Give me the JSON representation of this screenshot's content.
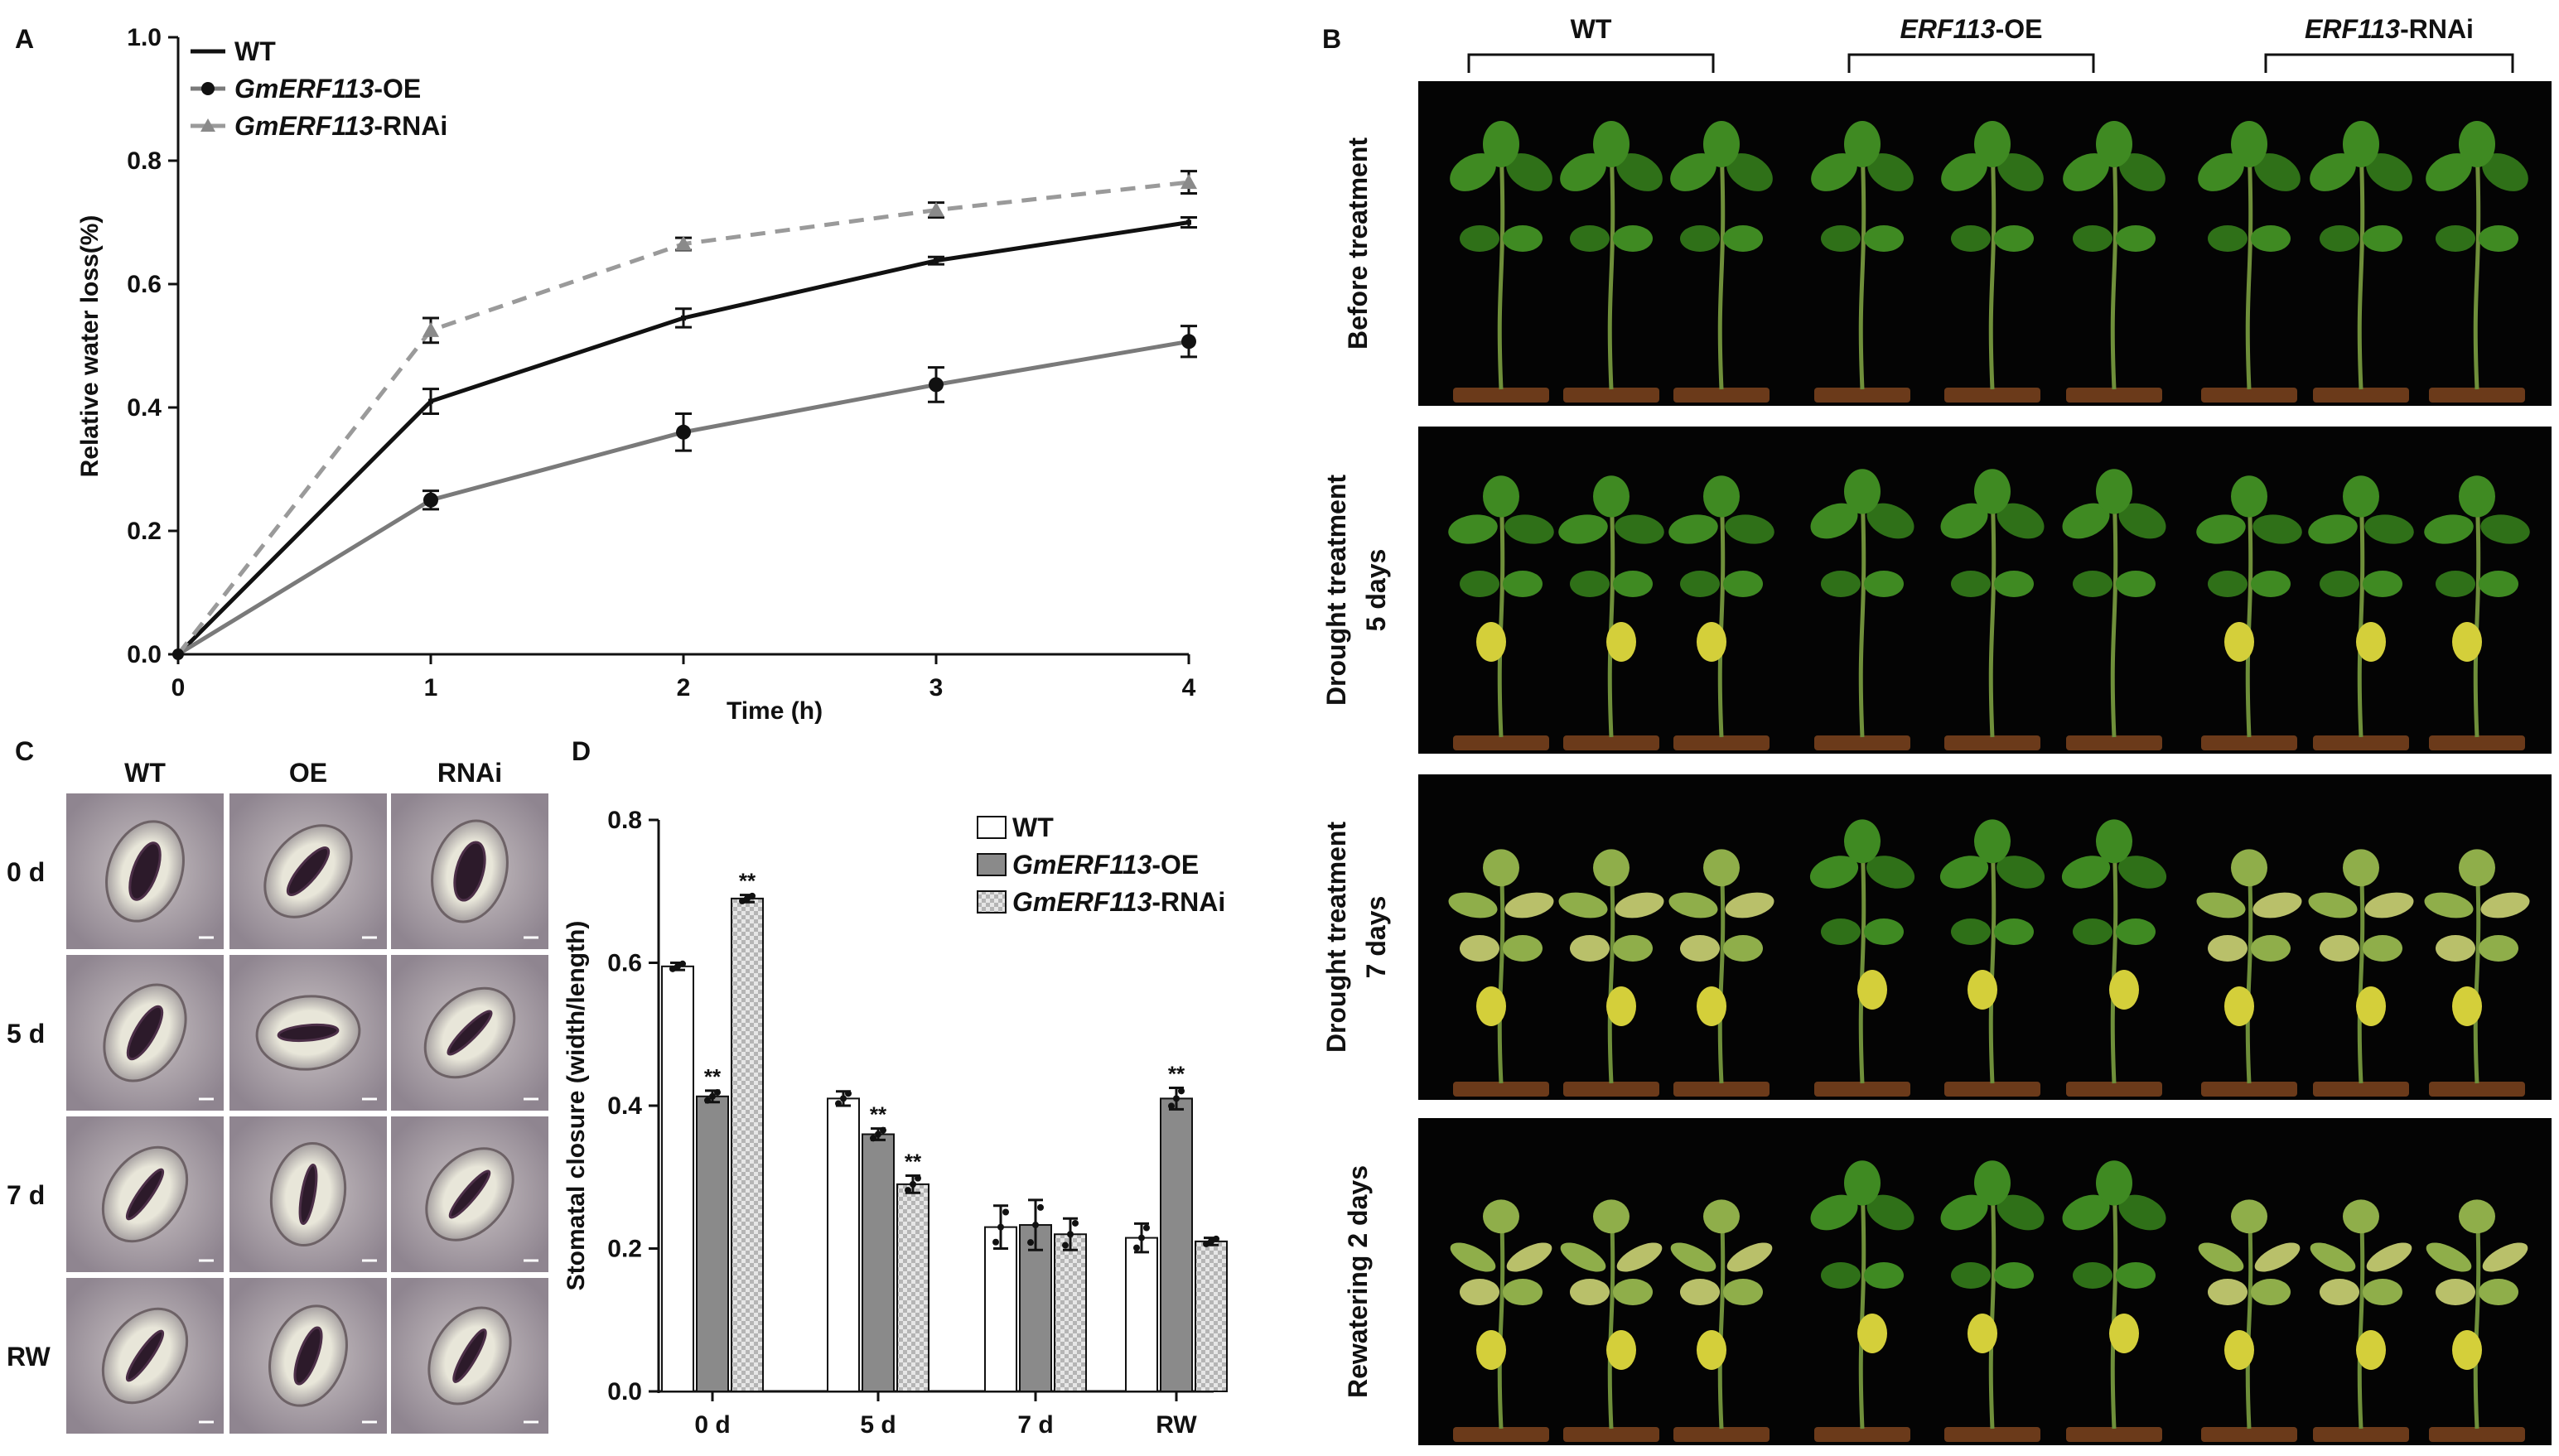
{
  "figure": {
    "panel_a": "A",
    "panel_b": "B",
    "panel_c": "C",
    "panel_d": "D"
  },
  "chart_data": [
    {
      "type": "line",
      "panel": "A",
      "title": "",
      "xlabel": "Time (h)",
      "ylabel": "Relative water loss(%)",
      "x": [
        0,
        1,
        2,
        3,
        4
      ],
      "xticks": [
        "0",
        "1",
        "2",
        "3",
        "4"
      ],
      "yticks": [
        "0.0",
        "0.2",
        "0.4",
        "0.6",
        "0.8",
        "1.0"
      ],
      "xlim": [
        0,
        4
      ],
      "ylim": [
        0,
        1.0
      ],
      "legend_position": "top-left",
      "series": [
        {
          "name": "WT",
          "italic_part": "",
          "suffix": "WT",
          "values": [
            0.0,
            0.41,
            0.545,
            0.638,
            0.7
          ],
          "errors": [
            0,
            0.02,
            0.015,
            0.006,
            0.008
          ],
          "color": "#111111",
          "style": "solid",
          "marker": "none"
        },
        {
          "name": "GmERF113-OE",
          "italic_part": "GmERF113",
          "suffix": "-OE",
          "values": [
            0.0,
            0.25,
            0.36,
            0.437,
            0.507
          ],
          "errors": [
            0,
            0.015,
            0.03,
            0.028,
            0.025
          ],
          "color": "#7a7a7a",
          "style": "solid",
          "marker": "circle"
        },
        {
          "name": "GmERF113-RNAi",
          "italic_part": "GmERF113",
          "suffix": "-RNAi",
          "values": [
            0.0,
            0.525,
            0.665,
            0.72,
            0.765
          ],
          "errors": [
            0,
            0.02,
            0.01,
            0.012,
            0.018
          ],
          "color": "#9a9a9a",
          "style": "dashed",
          "marker": "triangle"
        }
      ]
    },
    {
      "type": "bar",
      "panel": "D",
      "title": "",
      "xlabel": "",
      "ylabel": "Stomatal closure (width/length)",
      "categories": [
        "0 d",
        "5 d",
        "7 d",
        "RW"
      ],
      "yticks": [
        "0.0",
        "0.2",
        "0.4",
        "0.6",
        "0.8"
      ],
      "ylim": [
        0,
        0.8
      ],
      "legend_position": "top-right",
      "series": [
        {
          "name": "WT",
          "italic_part": "",
          "suffix": "WT",
          "values": [
            0.595,
            0.41,
            0.23,
            0.215
          ],
          "errors": [
            0.005,
            0.01,
            0.03,
            0.02
          ],
          "fill": "#ffffff",
          "pattern": "none",
          "significance": [
            "",
            "",
            "",
            ""
          ]
        },
        {
          "name": "GmERF113-OE",
          "italic_part": "GmERF113",
          "suffix": "-OE",
          "values": [
            0.413,
            0.36,
            0.233,
            0.41
          ],
          "errors": [
            0.008,
            0.008,
            0.035,
            0.015
          ],
          "fill": "#8a8a8a",
          "pattern": "none",
          "significance": [
            "**",
            "**",
            "",
            "**"
          ]
        },
        {
          "name": "GmERF113-RNAi",
          "italic_part": "GmERF113",
          "suffix": "-RNAi",
          "values": [
            0.69,
            0.29,
            0.22,
            0.21
          ],
          "errors": [
            0.005,
            0.012,
            0.022,
            0.005
          ],
          "fill": "#d9d9d9",
          "pattern": "checker",
          "significance": [
            "**",
            "**",
            "",
            ""
          ]
        }
      ]
    }
  ],
  "panel_b": {
    "groups": [
      {
        "italic_part": "",
        "suffix": "WT"
      },
      {
        "italic_part": "ERF113",
        "suffix": "-OE"
      },
      {
        "italic_part": "ERF113",
        "suffix": "-RNAi"
      }
    ],
    "rows": [
      {
        "line1": "Before treatment",
        "line2": ""
      },
      {
        "line1": "Drought treatment",
        "line2": "5 days"
      },
      {
        "line1": "Drought treatment",
        "line2": "7 days"
      },
      {
        "line1": "Rewatering 2 days",
        "line2": ""
      }
    ]
  },
  "panel_c": {
    "columns": [
      "WT",
      "OE",
      "RNAi"
    ],
    "rows": [
      "0 d",
      "5 d",
      "7 d",
      "RW"
    ]
  }
}
